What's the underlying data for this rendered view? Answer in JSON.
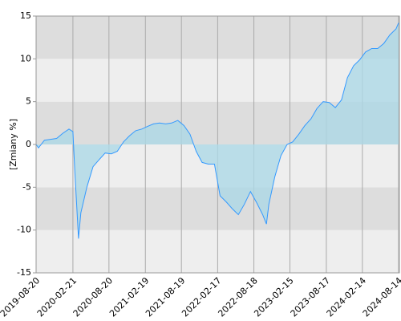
{
  "chart_data": {
    "type": "area",
    "y_label": "[Zmiany %]",
    "x": [
      "2019-08-20",
      "2019-09-01",
      "2019-10-01",
      "2019-11-01",
      "2019-12-01",
      "2020-01-01",
      "2020-02-01",
      "2020-02-21",
      "2020-03-01",
      "2020-03-20",
      "2020-04-01",
      "2020-05-01",
      "2020-06-01",
      "2020-07-01",
      "2020-08-01",
      "2020-09-01",
      "2020-10-01",
      "2020-11-01",
      "2020-12-01",
      "2021-01-01",
      "2021-02-01",
      "2021-03-01",
      "2021-04-01",
      "2021-05-01",
      "2021-06-01",
      "2021-07-01",
      "2021-08-01",
      "2021-09-01",
      "2021-10-01",
      "2021-11-01",
      "2021-12-01",
      "2022-01-01",
      "2022-02-01",
      "2022-03-01",
      "2022-04-01",
      "2022-05-01",
      "2022-06-01",
      "2022-07-01",
      "2022-08-01",
      "2022-09-01",
      "2022-10-01",
      "2022-10-20",
      "2022-11-01",
      "2022-12-01",
      "2023-01-01",
      "2023-02-01",
      "2023-03-01",
      "2023-04-01",
      "2023-05-01",
      "2023-06-01",
      "2023-07-01",
      "2023-08-01",
      "2023-09-01",
      "2023-10-01",
      "2023-11-01",
      "2023-12-01",
      "2024-01-01",
      "2024-02-01",
      "2024-03-01",
      "2024-04-01",
      "2024-05-01",
      "2024-06-01",
      "2024-07-01",
      "2024-08-01",
      "2024-08-14"
    ],
    "series": [
      {
        "color": "#3399ff",
        "fill": "#add8e6",
        "values": [
          0,
          -0.4,
          0.5,
          0.6,
          0.7,
          1.3,
          1.8,
          1.5,
          -3,
          -11,
          -8,
          -5,
          -2.6,
          -1.8,
          -1.0,
          -1.1,
          -0.8,
          0.3,
          1.0,
          1.6,
          1.8,
          2.1,
          2.4,
          2.5,
          2.4,
          2.5,
          2.8,
          2.2,
          1.2,
          -0.8,
          -2.1,
          -2.3,
          -2.3,
          -6,
          -6.7,
          -7.5,
          -8.2,
          -7.0,
          -5.5,
          -6.8,
          -8.2,
          -9.3,
          -7,
          -3.8,
          -1.3,
          0,
          0.3,
          1.2,
          2.2,
          3.0,
          4.2,
          5.0,
          4.9,
          4.3,
          5.2,
          7.8,
          9.2,
          9.9,
          10.8,
          11.2,
          11.2,
          11.8,
          12.8,
          13.5,
          14.2
        ]
      }
    ],
    "xlim": [
      "2019-08-20",
      "2024-08-14"
    ],
    "xticks": [
      "2019-08-20",
      "2020-02-21",
      "2020-08-20",
      "2021-02-19",
      "2021-08-19",
      "2022-02-17",
      "2022-08-18",
      "2023-02-15",
      "2023-08-17",
      "2024-02-14",
      "2024-08-14"
    ],
    "ylim": [
      -15,
      15
    ],
    "yticks": [
      -15,
      -10,
      -5,
      0,
      5,
      10,
      15
    ],
    "band_colors": [
      "#eeeeee",
      "#dddddd"
    ],
    "grid": true
  }
}
